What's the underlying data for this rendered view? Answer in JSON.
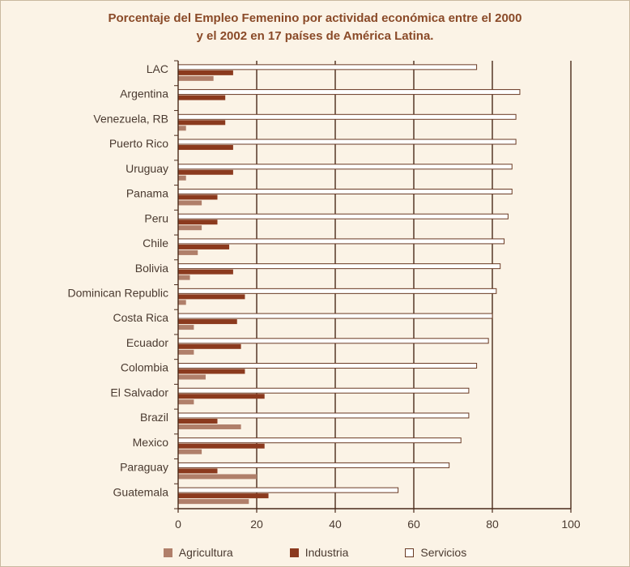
{
  "chart_data": {
    "type": "bar",
    "orientation": "horizontal",
    "title_lines": [
      "Porcentaje del Empleo Femenino por actividad económica entre el 2000",
      "y el 2002 en 17 países de América Latina."
    ],
    "categories": [
      "LAC",
      "Argentina",
      "Venezuela, RB",
      "Puerto Rico",
      "Uruguay",
      "Panama",
      "Peru",
      "Chile",
      "Bolivia",
      "Dominican Republic",
      "Costa Rica",
      "Ecuador",
      "Colombia",
      "El Salvador",
      "Brazil",
      "Mexico",
      "Paraguay",
      "Guatemala"
    ],
    "series": [
      {
        "name": "Servicios",
        "color": "#ffffff",
        "values": [
          76,
          87,
          86,
          86,
          85,
          85,
          84,
          83,
          82,
          81,
          80,
          79,
          76,
          74,
          74,
          72,
          69,
          56
        ]
      },
      {
        "name": "Industria",
        "color": "#8b3a1e",
        "values": [
          14,
          12,
          12,
          14,
          14,
          10,
          10,
          13,
          14,
          17,
          15,
          16,
          17,
          22,
          10,
          22,
          10,
          23
        ]
      },
      {
        "name": "Agricultura",
        "color": "#b07f6a",
        "values": [
          9,
          0,
          2,
          0,
          2,
          6,
          6,
          5,
          3,
          2,
          4,
          4,
          7,
          4,
          16,
          6,
          20,
          18
        ]
      }
    ],
    "legend_order": [
      "Agricultura",
      "Industria",
      "Servicios"
    ],
    "xlim": [
      0,
      100
    ],
    "xticks": [
      "0",
      "20",
      "40",
      "60",
      "80",
      "100"
    ],
    "grid": "vertical",
    "legend_position": "bottom"
  }
}
